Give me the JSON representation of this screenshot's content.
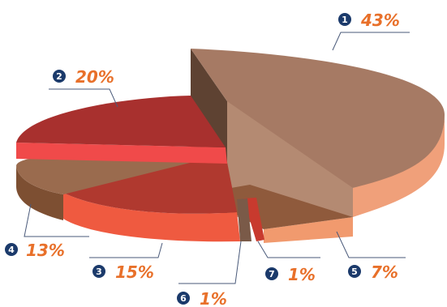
{
  "chart_data": {
    "type": "pie",
    "style": "3d-exploded",
    "slices": [
      {
        "marker": "1",
        "label": "43%",
        "value": 43,
        "color": "#a67a64"
      },
      {
        "marker": "2",
        "label": "20%",
        "value": 20,
        "color": "#a8302e"
      },
      {
        "marker": "3",
        "label": "15%",
        "value": 15,
        "color": "#b0392f"
      },
      {
        "marker": "4",
        "label": "13%",
        "value": 13,
        "color": "#9a6b4e"
      },
      {
        "marker": "5",
        "label": "7%",
        "value": 7,
        "color": "#8f5a3c"
      },
      {
        "marker": "6",
        "label": "1%",
        "value": 1,
        "color": "#7a5a48"
      },
      {
        "marker": "7",
        "label": "1%",
        "value": 1,
        "color": "#c83a2e"
      }
    ],
    "label_color": "#e8702a",
    "marker_color": "#1b3a6b"
  }
}
